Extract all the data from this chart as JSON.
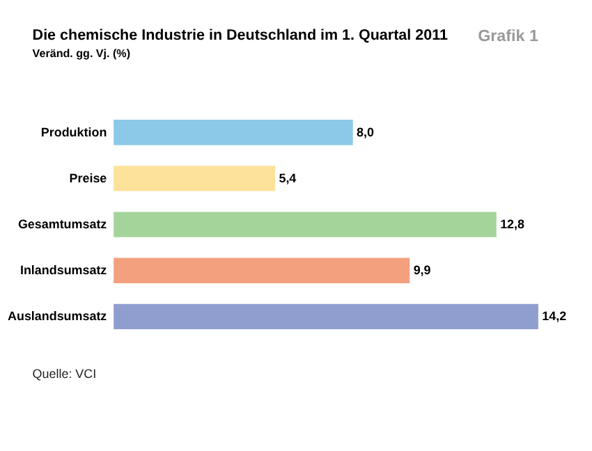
{
  "chart_data": {
    "type": "bar",
    "orientation": "horizontal",
    "title": "Die chemische Industrie in Deutschland im 1. Quartal 2011",
    "subtitle": "Veränd. gg. Vj. (%)",
    "categories": [
      "Produktion",
      "Preise",
      "Gesamtumsatz",
      "Inlandsumsatz",
      "Auslandsumsatz"
    ],
    "values": [
      8.0,
      5.4,
      12.8,
      9.9,
      14.2
    ],
    "colors": [
      "#8cc8e8",
      "#fde29a",
      "#a5d49a",
      "#f3a07e",
      "#909ecf"
    ],
    "value_labels": [
      "8,0",
      "5,4",
      "12,8",
      "9,9",
      "14,2"
    ],
    "annotations": [
      "Grafik 1",
      "Quelle: VCI"
    ]
  }
}
